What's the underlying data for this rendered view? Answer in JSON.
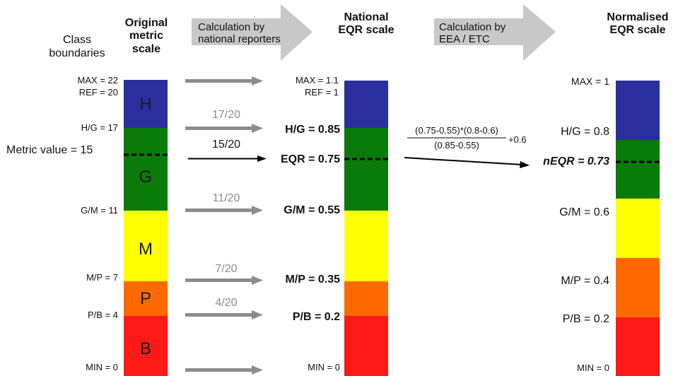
{
  "headers": {
    "class_boundaries": "Class boundaries",
    "original_scale": "Original metric scale",
    "national_scale": "National EQR scale",
    "normalised_scale": "Normalised EQR scale",
    "calc_national": "Calculation by national reporters",
    "calc_eea": "Calculation by EEA / ETC"
  },
  "original": {
    "max": "MAX = 22",
    "ref": "REF = 20",
    "hg": "H/G = 17",
    "metric_value": "Metric value = 15",
    "gm": "G/M = 11",
    "mp": "M/P = 7",
    "pb": "P/B = 4",
    "min": "MIN = 0",
    "classes": [
      "H",
      "G",
      "M",
      "P",
      "B"
    ]
  },
  "fractions": [
    "17/20",
    "15/20",
    "11/20",
    "7/20",
    "4/20"
  ],
  "national": {
    "max": "MAX = 1.1",
    "ref": "REF = 1",
    "hg": "H/G = 0.85",
    "eqr": "EQR = 0.75",
    "gm": "G/M = 0.55",
    "mp": "M/P = 0.35",
    "pb": "P/B = 0.2",
    "min": "MIN = 0"
  },
  "formula": {
    "numerator": "(0.75-0.55)*(0.8-0.6)",
    "denominator": "(0.85-0.55)",
    "addend": "+0.6"
  },
  "normalised": {
    "max": "MAX = 1",
    "hg": "H/G = 0.8",
    "neqr": "nEQR = 0.73",
    "gm": "G/M = 0.6",
    "mp": "M/P = 0.4",
    "pb": "P/B = 0.2",
    "min": "MIN = 0"
  },
  "colors": {
    "high": "#2b2f9e",
    "good": "#0a7a0a",
    "moderate": "#ffff00",
    "poor": "#ff6a00",
    "bad": "#ff1a1a",
    "arrow_gray": "#8c8c8c",
    "arrow_light": "#c8c8c8"
  }
}
